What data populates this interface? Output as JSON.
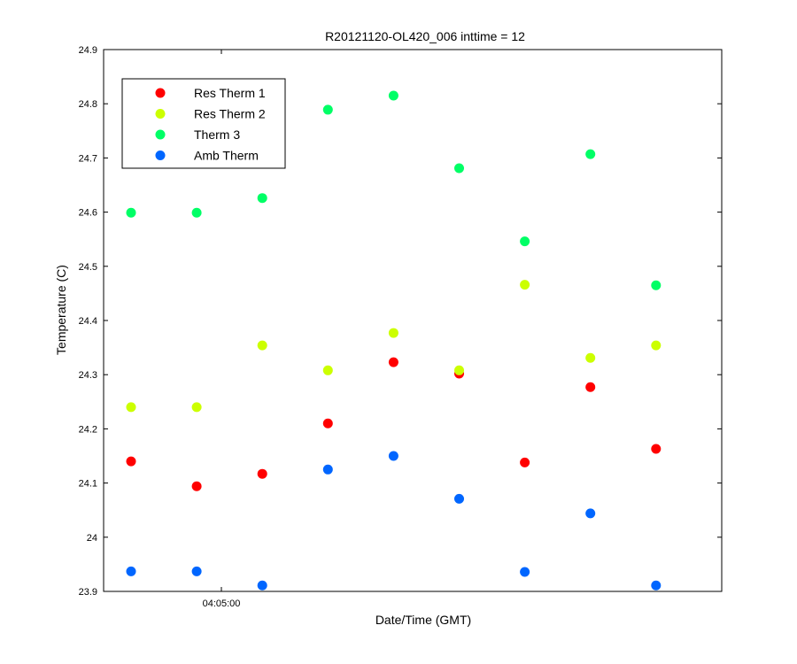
{
  "chart_data": {
    "type": "scatter",
    "title": "R20121120-OL420_006 inttime = 12",
    "xlabel": "Date/Time (GMT)",
    "ylabel": "Temperature (C)",
    "ylim": [
      23.9,
      24.9
    ],
    "yticks": [
      23.9,
      24,
      24.1,
      24.2,
      24.3,
      24.4,
      24.5,
      24.6,
      24.7,
      24.8,
      24.9
    ],
    "ytick_labels": [
      "23.9",
      "24",
      "24.1",
      "24.2",
      "24.3",
      "24.4",
      "24.5",
      "24.6",
      "24.7",
      "24.8",
      "24.9"
    ],
    "xtick_labels": [
      "04:05:00"
    ],
    "legend_position": "top-left",
    "grid": false,
    "series": [
      {
        "name": "Res Therm 1",
        "color": "#ff0000",
        "values": [
          24.14,
          24.094,
          24.117,
          24.21,
          24.323,
          24.302,
          24.138,
          24.277,
          24.163
        ]
      },
      {
        "name": "Res Therm 2",
        "color": "#ccff00",
        "values": [
          24.24,
          24.24,
          24.354,
          24.308,
          24.377,
          24.308,
          24.466,
          24.331,
          24.354
        ]
      },
      {
        "name": "Therm 3",
        "color": "#00ff66",
        "values": [
          24.599,
          24.599,
          24.626,
          24.789,
          24.815,
          24.681,
          24.546,
          24.707,
          24.465
        ]
      },
      {
        "name": "Amb Therm",
        "color": "#0066ff",
        "values": [
          23.937,
          23.937,
          23.911,
          24.125,
          24.15,
          24.071,
          23.936,
          24.044,
          23.911
        ]
      }
    ]
  }
}
